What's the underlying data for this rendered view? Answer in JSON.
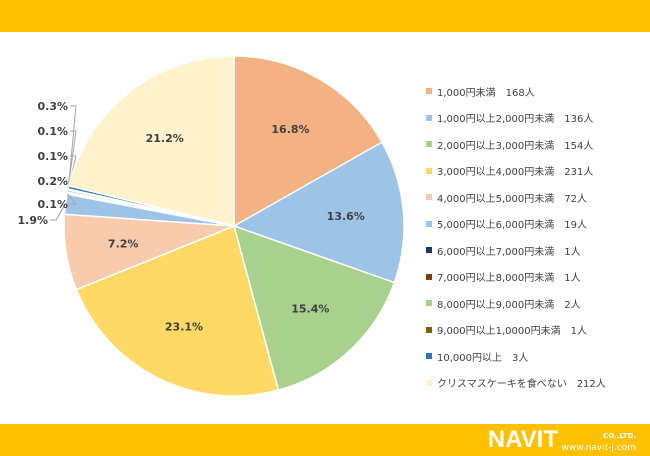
{
  "chart_data": {
    "type": "pie",
    "start": "top",
    "direction": "clockwise",
    "slices": [
      {
        "label": "1,000円未満",
        "count": "168人",
        "value": 168,
        "percent": "16.8%",
        "color": "#F4B183"
      },
      {
        "label": "1,000円以上2,000円未満",
        "count": "136人",
        "value": 136,
        "percent": "13.6%",
        "color": "#9DC3E6"
      },
      {
        "label": "2,000円以上3,000円未満",
        "count": "154人",
        "value": 154,
        "percent": "15.4%",
        "color": "#A9D18E"
      },
      {
        "label": "3,000円以上4,000円未満",
        "count": "231人",
        "value": 231,
        "percent": "23.1%",
        "color": "#FFD966"
      },
      {
        "label": "4,000円以上5,000円未満",
        "count": "72人",
        "value": 72,
        "percent": "7.2%",
        "color": "#F8CBAD"
      },
      {
        "label": "5,000円以上6,000円未満",
        "count": "19人",
        "value": 19,
        "percent": "1.9%",
        "color": "#9DC3E6"
      },
      {
        "label": "6,000円以上7,000円未満",
        "count": "1人",
        "value": 1,
        "percent": "0.1%",
        "color": "#203864"
      },
      {
        "label": "7,000円以上8,000円未満",
        "count": "1人",
        "value": 1,
        "percent": "0.1%",
        "color": "#843C0C"
      },
      {
        "label": "8,000円以上9,000円未満",
        "count": "2人",
        "value": 2,
        "percent": "0.2%",
        "color": "#A9D18E"
      },
      {
        "label": "9,000円以上1,0000円未満",
        "count": "1人",
        "value": 1,
        "percent": "0.1%",
        "color": "#7F6000"
      },
      {
        "label": "10,000円以上",
        "count": "3人",
        "value": 3,
        "percent": "0.3%",
        "color": "#2E75B6"
      },
      {
        "label": "クリスマスケーキを食べない",
        "count": "212人",
        "value": 212,
        "percent": "21.2%",
        "color": "#FFF2CC"
      }
    ],
    "legend_position": "right"
  },
  "branding": {
    "logo": "NAVIT",
    "company": "CO.,LTD.",
    "url": "www.navit-j.com",
    "bar_color": "#FFC000"
  }
}
